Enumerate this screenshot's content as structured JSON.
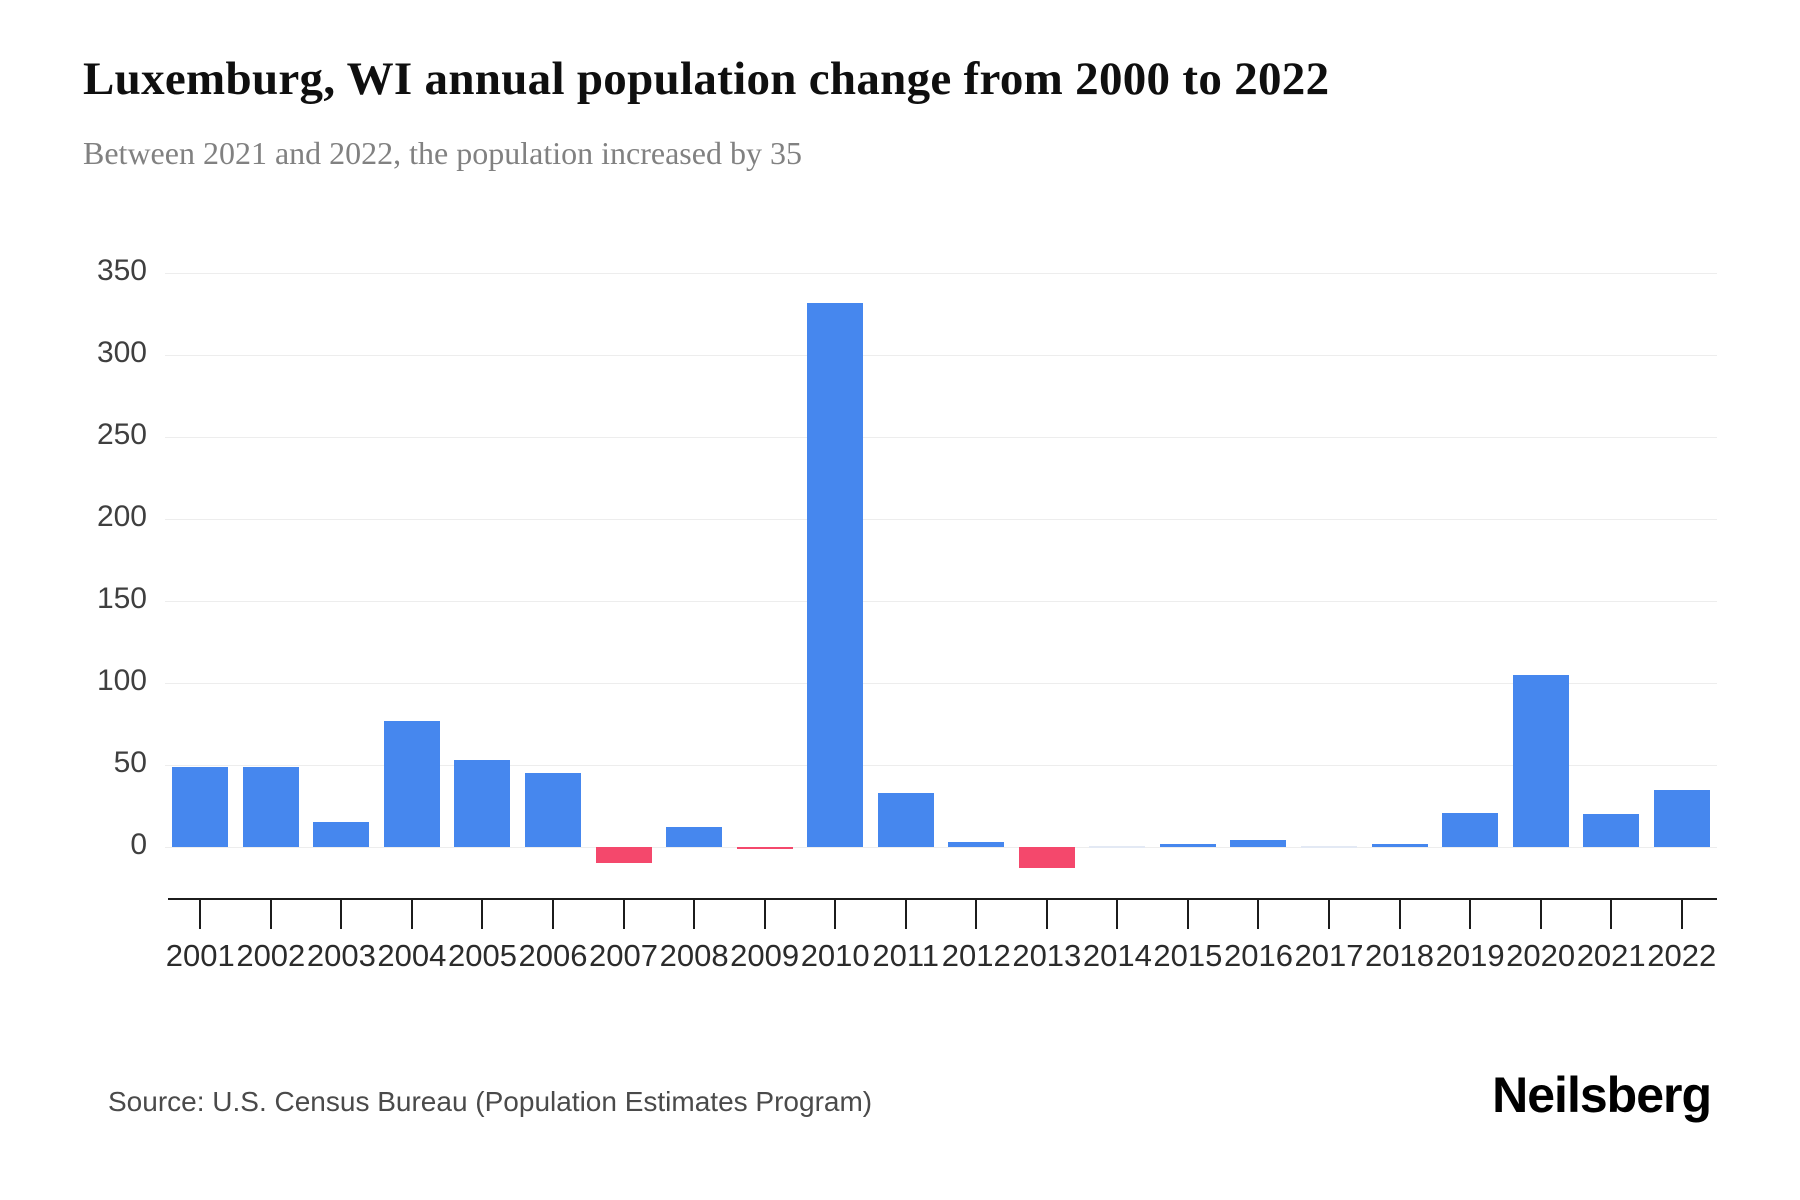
{
  "header": {
    "title": "Luxemburg, WI annual population change from 2000 to 2022",
    "subtitle": "Between 2021 and 2022, the population increased by 35"
  },
  "footer": {
    "source": "Source: U.S. Census Bureau (Population Estimates Program)",
    "brand": "Neilsberg"
  },
  "chart_data": {
    "type": "bar",
    "title": "Luxemburg, WI annual population change from 2000 to 2022",
    "subtitle": "Between 2021 and 2022, the population increased by 35",
    "xlabel": "",
    "ylabel": "",
    "categories": [
      "2001",
      "2002",
      "2003",
      "2004",
      "2005",
      "2006",
      "2007",
      "2008",
      "2009",
      "2010",
      "2011",
      "2012",
      "2013",
      "2014",
      "2015",
      "2016",
      "2017",
      "2018",
      "2019",
      "2020",
      "2021",
      "2022"
    ],
    "values": [
      49,
      49,
      15,
      77,
      53,
      45,
      -10,
      12,
      -1,
      332,
      33,
      3,
      -13,
      0,
      2,
      4,
      0,
      2,
      21,
      105,
      20,
      35
    ],
    "yticks": [
      0,
      50,
      100,
      150,
      200,
      250,
      300,
      350
    ],
    "ylim": [
      0,
      350
    ],
    "grid": true,
    "legend": false,
    "colors": {
      "positive_bar": "#4687EE",
      "negative_bar": "#F4486C",
      "zero_bar": "#e3e9f4",
      "gridline": "#ededed",
      "axis": "#1c1c1c",
      "title_text": "#0f0f0f",
      "subtitle_text": "#818181"
    }
  }
}
